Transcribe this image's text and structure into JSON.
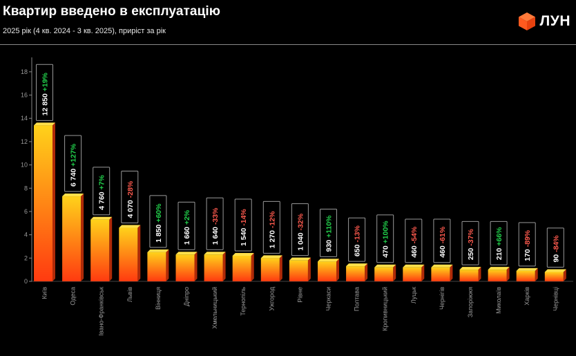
{
  "header": {
    "title": "Квартир введено в експлуатацію",
    "subtitle": "2025 рік (4 кв. 2024 - 3 кв. 2025), приріст за рік",
    "logo_text": "ЛУН"
  },
  "colors": {
    "bar_top": "#ffd21a",
    "bar_bottom": "#ff3a10",
    "growth_positive": "#22d34c",
    "growth_negative": "#ff5a4e",
    "logo_accent": "#ff5a1f"
  },
  "chart_data": {
    "type": "bar",
    "title": "Квартир введено в експлуатацію",
    "subtitle": "2025 рік (4 кв. 2024 - 3 кв. 2025), приріст за рік",
    "xlabel": "",
    "ylabel": "",
    "ylim": [
      0,
      19
    ],
    "yticks": [
      0,
      2,
      4,
      6,
      8,
      10,
      12,
      14,
      16,
      18
    ],
    "grid": false,
    "categories": [
      "Київ",
      "Одеса",
      "Івано-Франківськ",
      "Львів",
      "Вінниця",
      "Дніпро",
      "Хмельницький",
      "Тернопіль",
      "Ужгород",
      "Рівне",
      "Черкаси",
      "Полтава",
      "Кропивницький",
      "Луцьк",
      "Чернігів",
      "Запоріжжя",
      "Миколаїв",
      "Харків",
      "Чернівці"
    ],
    "values": [
      13.4,
      7.3,
      5.3,
      4.6,
      2.5,
      2.3,
      2.3,
      2.2,
      2.0,
      1.8,
      1.7,
      1.3,
      1.2,
      1.2,
      1.2,
      1.0,
      1.0,
      0.9,
      0.8
    ],
    "value_labels": [
      "12 850",
      "6 740",
      "4 760",
      "4 070",
      "1 850",
      "1 660",
      "1 640",
      "1 540",
      "1 270",
      "1 040",
      "930",
      "650",
      "470",
      "460",
      "460",
      "250",
      "210",
      "170",
      "90"
    ],
    "growth_labels": [
      "+19%",
      "+127%",
      "+7%",
      "-28%",
      "+60%",
      "+2%",
      "-33%",
      "-14%",
      "-12%",
      "-32%",
      "+110%",
      "-13%",
      "+100%",
      "-54%",
      "-61%",
      "-37%",
      "+66%",
      "-89%",
      "-84%"
    ]
  }
}
